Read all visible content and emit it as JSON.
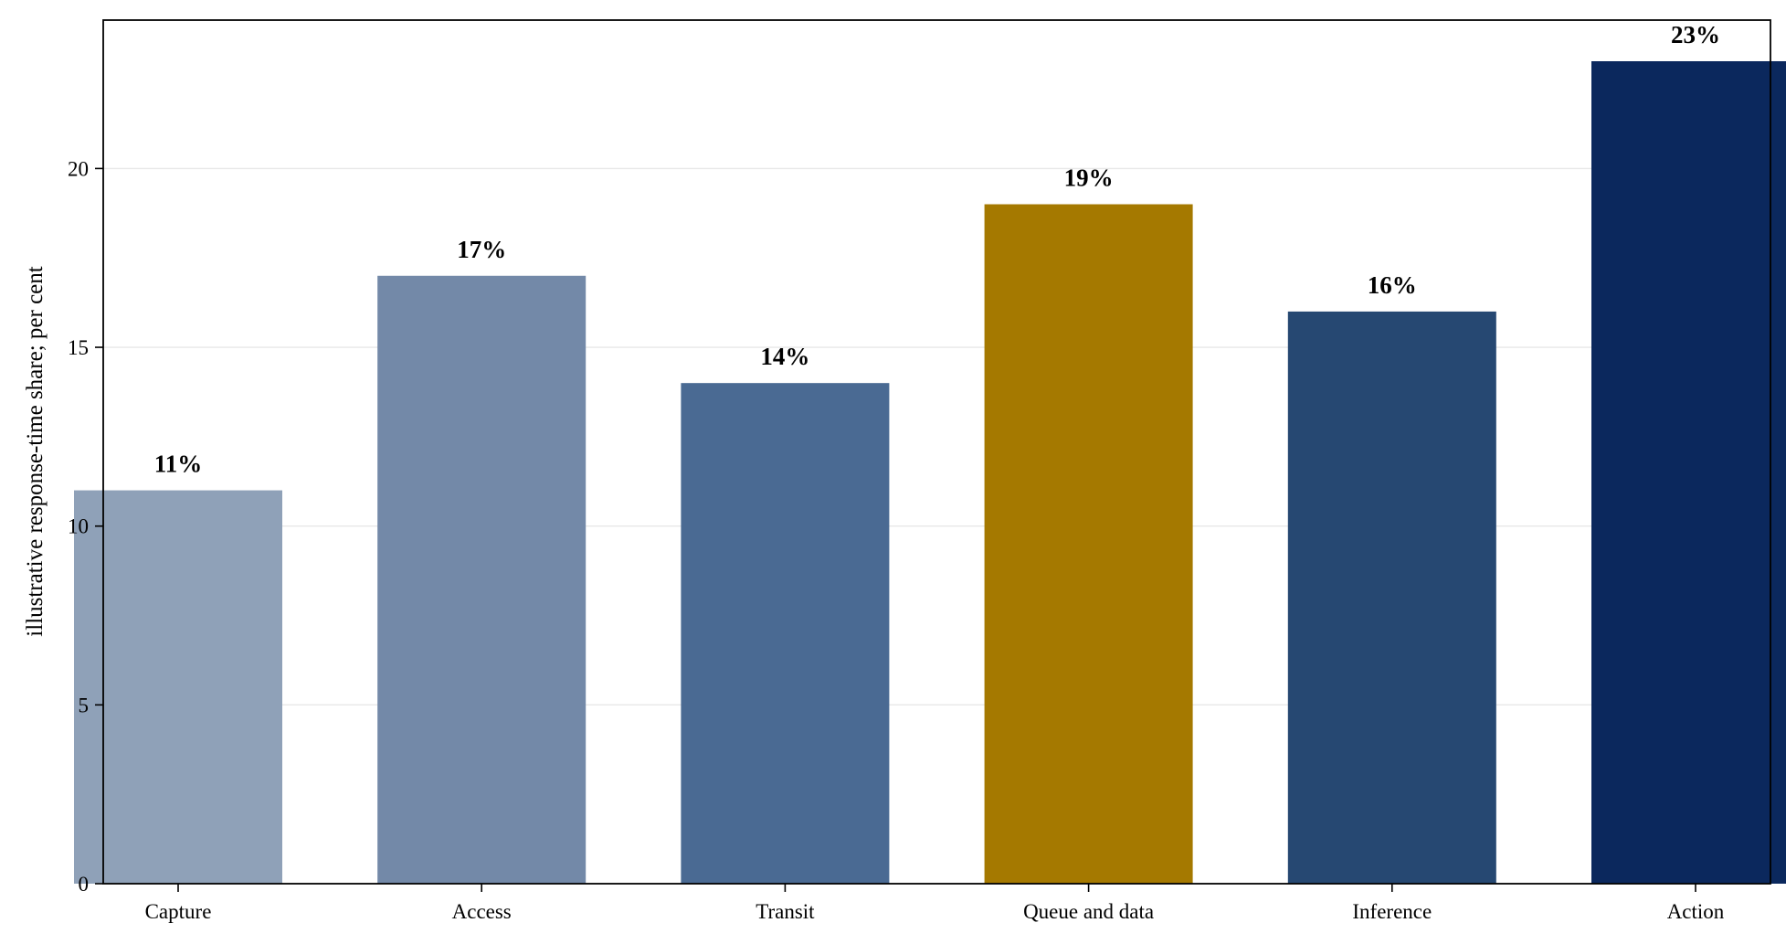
{
  "chart_data": {
    "type": "bar",
    "title": "",
    "xlabel": "",
    "ylabel": "illustrative response-time share; per cent",
    "categories": [
      "Capture",
      "Access",
      "Transit",
      "Queue and data",
      "Inference",
      "Action"
    ],
    "values": [
      11,
      17,
      14,
      19,
      16,
      23
    ],
    "value_labels": [
      "11%",
      "17%",
      "14%",
      "19%",
      "16%",
      "23%"
    ],
    "colors": [
      "#8fa1b8",
      "#7389a8",
      "#4a6a93",
      "#a57900",
      "#264872",
      "#0b285d"
    ],
    "ylim": [
      0,
      24.15
    ],
    "yticks": [
      0,
      5,
      10,
      15,
      20
    ],
    "ytick_labels": [
      "0",
      "5",
      "10",
      "15",
      "20"
    ],
    "grid": "y",
    "legend": "none"
  }
}
